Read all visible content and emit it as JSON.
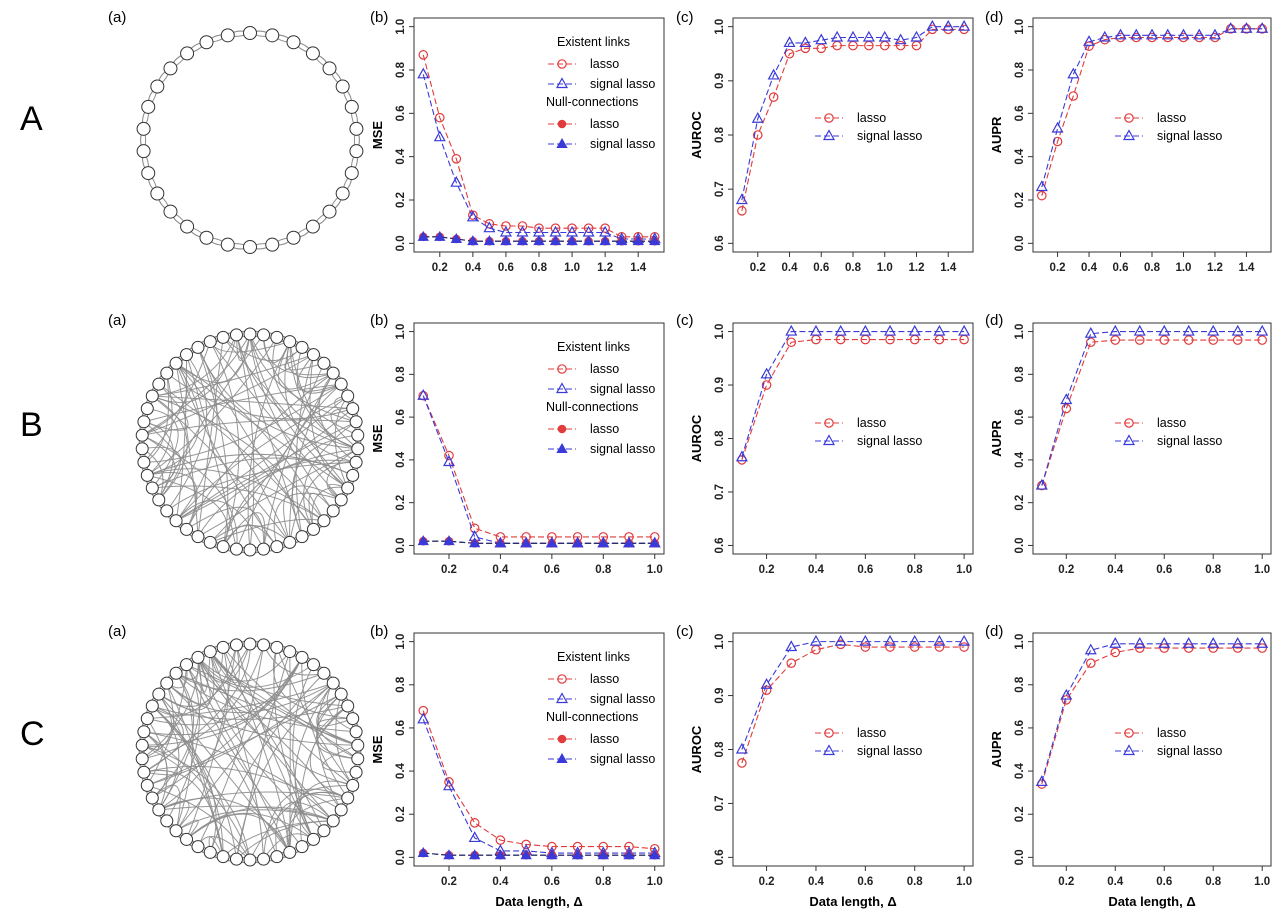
{
  "xlabel_bottom": "Data length, Δ",
  "rows": [
    {
      "label": "A",
      "network": "ring",
      "n_nodes": 30,
      "extra_edges": 0
    },
    {
      "label": "B",
      "network": "random",
      "n_nodes": 50,
      "extra_edges": 110
    },
    {
      "label": "C",
      "network": "random",
      "n_nodes": 50,
      "extra_edges": 120
    }
  ],
  "panel_letters": [
    "(a)",
    "(b)",
    "(c)",
    "(d)"
  ],
  "legend": {
    "mse_header1": "Existent links",
    "mse_header2": "Null-connections",
    "lasso": "lasso",
    "signal_lasso": "signal lasso"
  },
  "colors": {
    "lasso": "#e23b3b",
    "signal_lasso": "#3a3ad8",
    "network": "#8c8c8c"
  },
  "chart_data": [
    {
      "id": "A-b",
      "type": "line",
      "ylabel": "MSE",
      "ylim": [
        0,
        1.0
      ],
      "yticks": [
        "0.0",
        "0.2",
        "0.4",
        "0.6",
        "0.8",
        "1.0"
      ],
      "x": [
        0.1,
        0.2,
        0.3,
        0.4,
        0.5,
        0.6,
        0.7,
        0.8,
        0.9,
        1.0,
        1.1,
        1.2,
        1.3,
        1.4,
        1.5
      ],
      "xticks": [
        "0.2",
        "0.4",
        "0.6",
        "0.8",
        "1.0",
        "1.2",
        "1.4"
      ],
      "series": [
        {
          "name": "lasso",
          "group": "Existent links",
          "values": [
            0.87,
            0.58,
            0.39,
            0.13,
            0.09,
            0.08,
            0.08,
            0.07,
            0.07,
            0.07,
            0.07,
            0.07,
            0.03,
            0.03,
            0.03
          ]
        },
        {
          "name": "signal lasso",
          "group": "Existent links",
          "values": [
            0.78,
            0.49,
            0.28,
            0.12,
            0.07,
            0.05,
            0.05,
            0.05,
            0.05,
            0.05,
            0.05,
            0.05,
            0.02,
            0.02,
            0.02
          ]
        },
        {
          "name": "lasso",
          "group": "Null-connections",
          "values": [
            0.03,
            0.03,
            0.02,
            0.01,
            0.01,
            0.01,
            0.01,
            0.01,
            0.01,
            0.01,
            0.01,
            0.01,
            0.01,
            0.01,
            0.01
          ]
        },
        {
          "name": "signal lasso",
          "group": "Null-connections",
          "values": [
            0.03,
            0.03,
            0.02,
            0.01,
            0.01,
            0.01,
            0.01,
            0.01,
            0.01,
            0.01,
            0.01,
            0.01,
            0.01,
            0.01,
            0.01
          ]
        }
      ]
    },
    {
      "id": "A-c",
      "type": "line",
      "ylabel": "AUROC",
      "ylim": [
        0.6,
        1.0
      ],
      "yticks": [
        "0.6",
        "0.7",
        "0.8",
        "0.9",
        "1.0"
      ],
      "x": [
        0.1,
        0.2,
        0.3,
        0.4,
        0.5,
        0.6,
        0.7,
        0.8,
        0.9,
        1.0,
        1.1,
        1.2,
        1.3,
        1.4,
        1.5
      ],
      "xticks": [
        "0.2",
        "0.4",
        "0.6",
        "0.8",
        "1.0",
        "1.2",
        "1.4"
      ],
      "series": [
        {
          "name": "lasso",
          "values": [
            0.66,
            0.8,
            0.87,
            0.95,
            0.96,
            0.96,
            0.965,
            0.965,
            0.965,
            0.965,
            0.965,
            0.965,
            0.995,
            0.995,
            0.995
          ]
        },
        {
          "name": "signal lasso",
          "values": [
            0.68,
            0.83,
            0.91,
            0.97,
            0.97,
            0.975,
            0.98,
            0.98,
            0.98,
            0.98,
            0.975,
            0.98,
            1.0,
            1.0,
            1.0
          ]
        }
      ]
    },
    {
      "id": "A-d",
      "type": "line",
      "ylabel": "AUPR",
      "ylim": [
        0,
        1.0
      ],
      "yticks": [
        "0.0",
        "0.2",
        "0.4",
        "0.6",
        "0.8",
        "1.0"
      ],
      "x": [
        0.1,
        0.2,
        0.3,
        0.4,
        0.5,
        0.6,
        0.7,
        0.8,
        0.9,
        1.0,
        1.1,
        1.2,
        1.3,
        1.4,
        1.5
      ],
      "xticks": [
        "0.2",
        "0.4",
        "0.6",
        "0.8",
        "1.0",
        "1.2",
        "1.4"
      ],
      "series": [
        {
          "name": "lasso",
          "values": [
            0.22,
            0.47,
            0.68,
            0.91,
            0.94,
            0.95,
            0.95,
            0.95,
            0.95,
            0.95,
            0.95,
            0.95,
            0.99,
            0.99,
            0.99
          ]
        },
        {
          "name": "signal lasso",
          "values": [
            0.26,
            0.53,
            0.78,
            0.93,
            0.95,
            0.96,
            0.96,
            0.96,
            0.96,
            0.96,
            0.96,
            0.96,
            0.99,
            0.99,
            0.99
          ]
        }
      ]
    },
    {
      "id": "B-b",
      "type": "line",
      "ylabel": "MSE",
      "ylim": [
        0,
        1.0
      ],
      "yticks": [
        "0.0",
        "0.2",
        "0.4",
        "0.6",
        "0.8",
        "1.0"
      ],
      "x": [
        0.1,
        0.2,
        0.3,
        0.4,
        0.5,
        0.6,
        0.7,
        0.8,
        0.9,
        1.0
      ],
      "xticks": [
        "0.2",
        "0.4",
        "0.6",
        "0.8",
        "1.0"
      ],
      "series": [
        {
          "name": "lasso",
          "group": "Existent links",
          "values": [
            0.7,
            0.42,
            0.08,
            0.04,
            0.04,
            0.04,
            0.04,
            0.04,
            0.04,
            0.04
          ]
        },
        {
          "name": "signal lasso",
          "group": "Existent links",
          "values": [
            0.7,
            0.39,
            0.04,
            0.01,
            0.01,
            0.01,
            0.01,
            0.01,
            0.01,
            0.01
          ]
        },
        {
          "name": "lasso",
          "group": "Null-connections",
          "values": [
            0.02,
            0.02,
            0.01,
            0.01,
            0.01,
            0.01,
            0.01,
            0.01,
            0.01,
            0.01
          ]
        },
        {
          "name": "signal lasso",
          "group": "Null-connections",
          "values": [
            0.02,
            0.02,
            0.01,
            0.01,
            0.01,
            0.01,
            0.01,
            0.01,
            0.01,
            0.01
          ]
        }
      ]
    },
    {
      "id": "B-c",
      "type": "line",
      "ylabel": "AUROC",
      "ylim": [
        0.6,
        1.0
      ],
      "yticks": [
        "0.6",
        "0.7",
        "0.8",
        "0.9",
        "1.0"
      ],
      "x": [
        0.1,
        0.2,
        0.3,
        0.4,
        0.5,
        0.6,
        0.7,
        0.8,
        0.9,
        1.0
      ],
      "xticks": [
        "0.2",
        "0.4",
        "0.6",
        "0.8",
        "1.0"
      ],
      "series": [
        {
          "name": "lasso",
          "values": [
            0.76,
            0.9,
            0.98,
            0.985,
            0.985,
            0.985,
            0.985,
            0.985,
            0.985,
            0.985
          ]
        },
        {
          "name": "signal lasso",
          "values": [
            0.765,
            0.92,
            1.0,
            1.0,
            1.0,
            1.0,
            1.0,
            1.0,
            1.0,
            1.0
          ]
        }
      ]
    },
    {
      "id": "B-d",
      "type": "line",
      "ylabel": "AUPR",
      "ylim": [
        0,
        1.0
      ],
      "yticks": [
        "0.0",
        "0.2",
        "0.4",
        "0.6",
        "0.8",
        "1.0"
      ],
      "x": [
        0.1,
        0.2,
        0.3,
        0.4,
        0.5,
        0.6,
        0.7,
        0.8,
        0.9,
        1.0
      ],
      "xticks": [
        "0.2",
        "0.4",
        "0.6",
        "0.8",
        "1.0"
      ],
      "series": [
        {
          "name": "lasso",
          "values": [
            0.28,
            0.64,
            0.95,
            0.96,
            0.96,
            0.96,
            0.96,
            0.96,
            0.96,
            0.96
          ]
        },
        {
          "name": "signal lasso",
          "values": [
            0.28,
            0.68,
            0.99,
            1.0,
            1.0,
            1.0,
            1.0,
            1.0,
            1.0,
            1.0
          ]
        }
      ]
    },
    {
      "id": "C-b",
      "type": "line",
      "ylabel": "MSE",
      "ylim": [
        0,
        1.0
      ],
      "yticks": [
        "0.0",
        "0.2",
        "0.4",
        "0.6",
        "0.8",
        "1.0"
      ],
      "x": [
        0.1,
        0.2,
        0.3,
        0.4,
        0.5,
        0.6,
        0.7,
        0.8,
        0.9,
        1.0
      ],
      "xticks": [
        "0.2",
        "0.4",
        "0.6",
        "0.8",
        "1.0"
      ],
      "xlabel": "Data length, Δ",
      "series": [
        {
          "name": "lasso",
          "group": "Existent links",
          "values": [
            0.68,
            0.35,
            0.16,
            0.08,
            0.06,
            0.05,
            0.05,
            0.05,
            0.05,
            0.04
          ]
        },
        {
          "name": "signal lasso",
          "group": "Existent links",
          "values": [
            0.64,
            0.33,
            0.09,
            0.03,
            0.03,
            0.02,
            0.02,
            0.02,
            0.02,
            0.02
          ]
        },
        {
          "name": "lasso",
          "group": "Null-connections",
          "values": [
            0.02,
            0.01,
            0.01,
            0.01,
            0.01,
            0.01,
            0.01,
            0.01,
            0.01,
            0.01
          ]
        },
        {
          "name": "signal lasso",
          "group": "Null-connections",
          "values": [
            0.02,
            0.01,
            0.01,
            0.01,
            0.01,
            0.01,
            0.01,
            0.01,
            0.01,
            0.01
          ]
        }
      ]
    },
    {
      "id": "C-c",
      "type": "line",
      "ylabel": "AUROC",
      "ylim": [
        0.6,
        1.0
      ],
      "yticks": [
        "0.6",
        "0.7",
        "0.8",
        "0.9",
        "1.0"
      ],
      "x": [
        0.1,
        0.2,
        0.3,
        0.4,
        0.5,
        0.6,
        0.7,
        0.8,
        0.9,
        1.0
      ],
      "xticks": [
        "0.2",
        "0.4",
        "0.6",
        "0.8",
        "1.0"
      ],
      "xlabel": "Data length, Δ",
      "series": [
        {
          "name": "lasso",
          "values": [
            0.775,
            0.91,
            0.96,
            0.985,
            0.995,
            0.99,
            0.99,
            0.99,
            0.99,
            0.99
          ]
        },
        {
          "name": "signal lasso",
          "values": [
            0.8,
            0.92,
            0.99,
            1.0,
            1.0,
            1.0,
            1.0,
            1.0,
            1.0,
            1.0
          ]
        }
      ]
    },
    {
      "id": "C-d",
      "type": "line",
      "ylabel": "AUPR",
      "ylim": [
        0,
        1.0
      ],
      "yticks": [
        "0.0",
        "0.2",
        "0.4",
        "0.6",
        "0.8",
        "1.0"
      ],
      "x": [
        0.1,
        0.2,
        0.3,
        0.4,
        0.5,
        0.6,
        0.7,
        0.8,
        0.9,
        1.0
      ],
      "xticks": [
        "0.2",
        "0.4",
        "0.6",
        "0.8",
        "1.0"
      ],
      "xlabel": "Data length, Δ",
      "series": [
        {
          "name": "lasso",
          "values": [
            0.34,
            0.73,
            0.9,
            0.95,
            0.97,
            0.97,
            0.97,
            0.97,
            0.97,
            0.97
          ]
        },
        {
          "name": "signal lasso",
          "values": [
            0.35,
            0.75,
            0.96,
            0.99,
            0.99,
            0.99,
            0.99,
            0.99,
            0.99,
            0.99
          ]
        }
      ]
    }
  ]
}
